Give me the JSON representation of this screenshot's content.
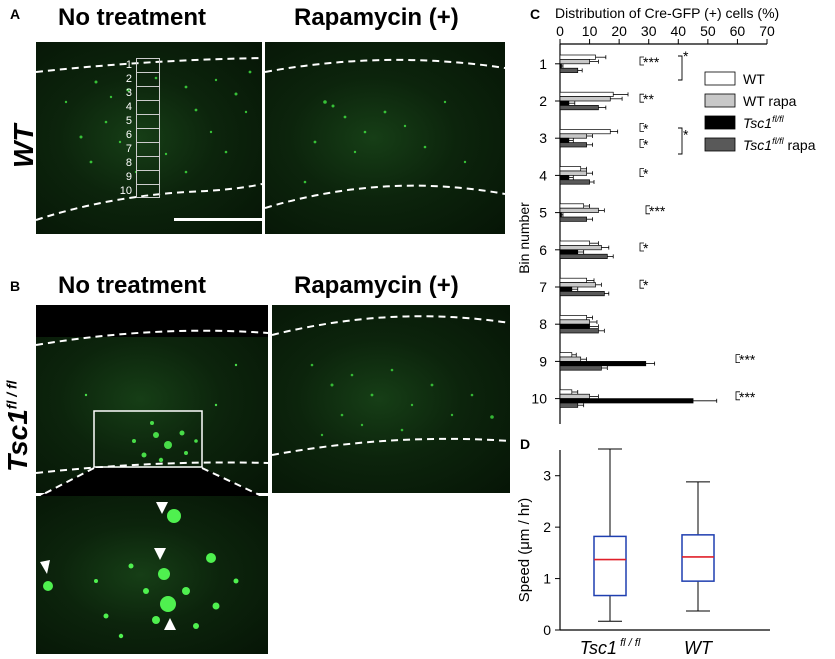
{
  "panels": {
    "A": {
      "label": "A",
      "left_title": "No treatment",
      "right_title": "Rapamycin (+)",
      "row_label": "WT",
      "bins": [
        "1",
        "2",
        "3",
        "4",
        "5",
        "6",
        "7",
        "8",
        "9",
        "10"
      ]
    },
    "B": {
      "label": "B",
      "left_title": "No treatment",
      "right_title": "Rapamycin (+)",
      "row_label_main": "Tsc1",
      "row_label_sup": "fl / fl"
    },
    "C": {
      "label": "C"
    },
    "D": {
      "label": "D"
    }
  },
  "chart_data": [
    {
      "type": "bar",
      "orientation": "horizontal",
      "title": "Distribution of Cre-GFP (+) cells (%)",
      "xlabel": "Distribution of Cre-GFP (+) cells (%)",
      "ylabel": "Bin number",
      "xlim": [
        0,
        70
      ],
      "xticks": [
        "0",
        "10",
        "20",
        "30",
        "40",
        "50",
        "60",
        "70"
      ],
      "categories": [
        "1",
        "2",
        "3",
        "4",
        "5",
        "6",
        "7",
        "8",
        "9",
        "10"
      ],
      "series": [
        {
          "name": "WT",
          "color": "#ffffff",
          "values": [
            12,
            18,
            17,
            7,
            8,
            10,
            9,
            9,
            4,
            4
          ],
          "errors": [
            3.5,
            5,
            2.5,
            2,
            2,
            3,
            2.5,
            2,
            1.5,
            2
          ]
        },
        {
          "name": "WT rapa",
          "color": "#c8c8c8",
          "values": [
            10,
            17,
            9,
            9,
            13,
            14,
            12,
            10,
            7,
            10
          ],
          "errors": [
            3,
            4,
            2,
            2,
            2,
            2.5,
            2,
            2.5,
            2,
            3
          ]
        },
        {
          "name": "Tsc1 fl/fl",
          "label_main": "Tsc1",
          "label_sup": "fl/fl",
          "color": "#000000",
          "values": [
            0.5,
            3,
            3,
            3,
            0.5,
            6,
            4,
            10,
            29,
            45
          ],
          "errors": [
            0.5,
            2,
            1.5,
            1.5,
            0.5,
            2,
            2,
            3,
            3,
            8
          ]
        },
        {
          "name": "Tsc1 fl/fl rapa",
          "label_main": "Tsc1",
          "label_sup": "fl/fl",
          "label_suffix": " rapa",
          "color": "#595959",
          "values": [
            6,
            13,
            9,
            10,
            9,
            16,
            15,
            13,
            14,
            6
          ],
          "errors": [
            1.5,
            2.5,
            2,
            1.5,
            2,
            2,
            1.5,
            2,
            2,
            2
          ]
        }
      ],
      "significance": [
        {
          "bin": "1",
          "label": "***"
        },
        {
          "bin": "1",
          "label": "*"
        },
        {
          "bin": "2",
          "label": "**"
        },
        {
          "bin": "3",
          "label": "*"
        },
        {
          "bin": "3",
          "label": "*"
        },
        {
          "bin": "3",
          "label": "*"
        },
        {
          "bin": "4",
          "label": "*"
        },
        {
          "bin": "5",
          "label": "***"
        },
        {
          "bin": "6",
          "label": "*"
        },
        {
          "bin": "7",
          "label": "*"
        },
        {
          "bin": "9",
          "label": "***"
        },
        {
          "bin": "10",
          "label": "***"
        }
      ]
    },
    {
      "type": "box",
      "ylabel": "Speed (μm / hr)",
      "ylim": [
        0,
        3.5
      ],
      "yticks": [
        "0",
        "1",
        "2",
        "3"
      ],
      "categories": [
        "Tsc1 fl/fl",
        "WT"
      ],
      "category_labels": [
        {
          "main": "Tsc1",
          "sup": "fl / fl"
        },
        {
          "main": "WT",
          "sup": ""
        }
      ],
      "boxes": [
        {
          "name": "Tsc1 fl/fl",
          "min": 0.17,
          "q1": 0.67,
          "median": 1.37,
          "q3": 1.82,
          "max": 3.52
        },
        {
          "name": "WT",
          "min": 0.37,
          "q1": 0.95,
          "median": 1.42,
          "q3": 1.85,
          "max": 2.88
        }
      ],
      "box_color": "#1f3fb0",
      "median_color": "#e0202a"
    }
  ]
}
